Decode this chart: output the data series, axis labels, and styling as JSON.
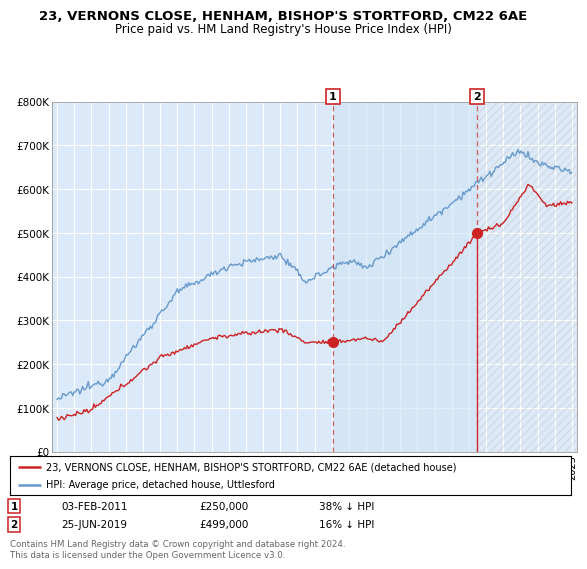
{
  "title": "23, VERNONS CLOSE, HENHAM, BISHOP'S STORTFORD, CM22 6AE",
  "subtitle": "Price paid vs. HM Land Registry's House Price Index (HPI)",
  "ylabel_ticks": [
    "£0",
    "£100K",
    "£200K",
    "£300K",
    "£400K",
    "£500K",
    "£600K",
    "£700K",
    "£800K"
  ],
  "ytick_vals": [
    0,
    100000,
    200000,
    300000,
    400000,
    500000,
    600000,
    700000,
    800000
  ],
  "ylim": [
    0,
    800000
  ],
  "xlim_start": 1994.7,
  "xlim_end": 2025.3,
  "hpi_color": "#6699cc",
  "hpi_fill_color": "#d0e4f5",
  "price_color": "#cc2222",
  "marker1_date": 2011.08,
  "marker1_price": 250000,
  "marker2_date": 2019.48,
  "marker2_price": 499000,
  "legend_line1": "23, VERNONS CLOSE, HENHAM, BISHOP'S STORTFORD, CM22 6AE (detached house)",
  "legend_line2": "HPI: Average price, detached house, Uttlesford",
  "table_row1": [
    "1",
    "03-FEB-2011",
    "£250,000",
    "38% ↓ HPI"
  ],
  "table_row2": [
    "2",
    "25-JUN-2019",
    "£499,000",
    "16% ↓ HPI"
  ],
  "footer": "Contains HM Land Registry data © Crown copyright and database right 2024.\nThis data is licensed under the Open Government Licence v3.0.",
  "bg_color": "#dce9f8",
  "grid_color": "#ffffff",
  "hatch_color": "#cccccc"
}
